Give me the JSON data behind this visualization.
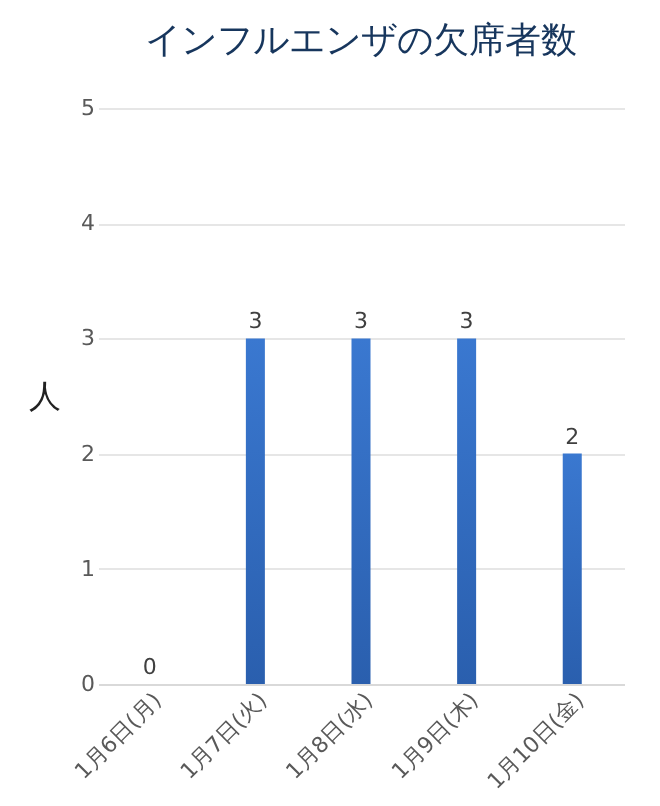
{
  "chart_data": {
    "type": "bar",
    "title": "インフルエンザの欠席者数",
    "ylabel": "人",
    "categories": [
      "1月6日(月)",
      "1月7日(火)",
      "1月8日(水)",
      "1月9日(木)",
      "1月10日(金)"
    ],
    "values": [
      0,
      3,
      3,
      3,
      2
    ],
    "color": "#3a78d0",
    "ylim": [
      0,
      5
    ],
    "yticks": [
      0,
      1,
      2,
      3,
      4,
      5
    ],
    "grid": "y",
    "data_labels": true
  }
}
